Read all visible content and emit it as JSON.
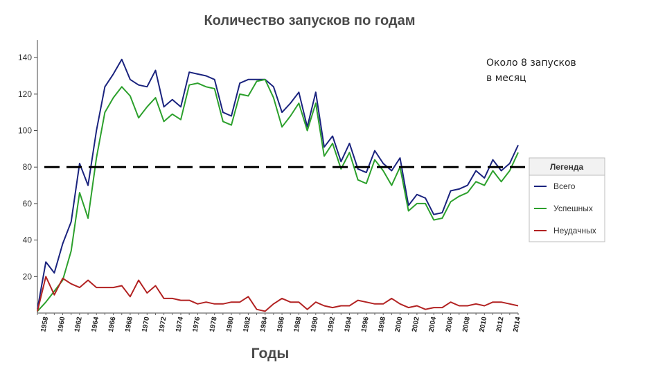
{
  "chart_data": {
    "type": "line",
    "title": "Количество запусков по годам",
    "xlabel": "Годы",
    "ylabel": "",
    "ylim": [
      0,
      145
    ],
    "y_ticks": [
      20,
      40,
      60,
      80,
      100,
      120,
      140
    ],
    "x_tick_labels": [
      "1958",
      "1960",
      "1962",
      "1964",
      "1966",
      "1968",
      "1970",
      "1972",
      "1974",
      "1976",
      "1978",
      "1980",
      "1982",
      "1984",
      "1986",
      "1988",
      "1990",
      "1992",
      "1994",
      "1996",
      "1998",
      "2000",
      "2002",
      "2004",
      "2006",
      "2008",
      "2010",
      "2012",
      "2014"
    ],
    "x": [
      1957,
      1958,
      1959,
      1960,
      1961,
      1962,
      1963,
      1964,
      1965,
      1966,
      1967,
      1968,
      1969,
      1970,
      1971,
      1972,
      1973,
      1974,
      1975,
      1976,
      1977,
      1978,
      1979,
      1980,
      1981,
      1982,
      1983,
      1984,
      1985,
      1986,
      1987,
      1988,
      1989,
      1990,
      1991,
      1992,
      1993,
      1994,
      1995,
      1996,
      1997,
      1998,
      1999,
      2000,
      2001,
      2002,
      2003,
      2004,
      2005,
      2006,
      2007,
      2008,
      2009,
      2010,
      2011,
      2012,
      2013,
      2014
    ],
    "series": [
      {
        "name": "Всего",
        "color": "#1a237e",
        "values": [
          2,
          28,
          22,
          38,
          50,
          82,
          70,
          100,
          124,
          131,
          139,
          128,
          125,
          124,
          133,
          113,
          117,
          113,
          132,
          131,
          130,
          128,
          110,
          108,
          126,
          128,
          128,
          128,
          124,
          110,
          115,
          121,
          102,
          121,
          91,
          97,
          83,
          93,
          79,
          77,
          89,
          82,
          78,
          85,
          59,
          65,
          63,
          54,
          55,
          67,
          68,
          70,
          78,
          74,
          84,
          78,
          82,
          92
        ]
      },
      {
        "name": "Успешных",
        "color": "#2ca02c",
        "values": [
          1,
          6,
          12,
          18,
          34,
          66,
          52,
          85,
          110,
          118,
          124,
          119,
          107,
          113,
          118,
          105,
          109,
          106,
          125,
          126,
          124,
          123,
          105,
          103,
          120,
          119,
          127,
          128,
          118,
          102,
          108,
          115,
          100,
          115,
          86,
          93,
          79,
          88,
          73,
          71,
          84,
          78,
          70,
          80,
          56,
          60,
          60,
          51,
          52,
          61,
          64,
          66,
          72,
          70,
          78,
          72,
          78,
          88
        ]
      },
      {
        "name": "Неудачных",
        "color": "#b22222",
        "values": [
          1,
          20,
          10,
          19,
          16,
          14,
          18,
          14,
          14,
          14,
          15,
          9,
          18,
          11,
          15,
          8,
          8,
          7,
          7,
          5,
          6,
          5,
          5,
          6,
          6,
          9,
          2,
          1,
          5,
          8,
          6,
          6,
          2,
          6,
          4,
          3,
          4,
          4,
          7,
          6,
          5,
          5,
          8,
          5,
          3,
          4,
          2,
          3,
          3,
          6,
          4,
          4,
          5,
          4,
          6,
          6,
          5,
          4
        ]
      }
    ],
    "reference_line": {
      "y": 80,
      "style": "dashed",
      "color": "#000000"
    },
    "annotation": "Около 8 запусков в месяц",
    "legend": {
      "title": "Легенда",
      "position": "right"
    },
    "grid": false
  }
}
